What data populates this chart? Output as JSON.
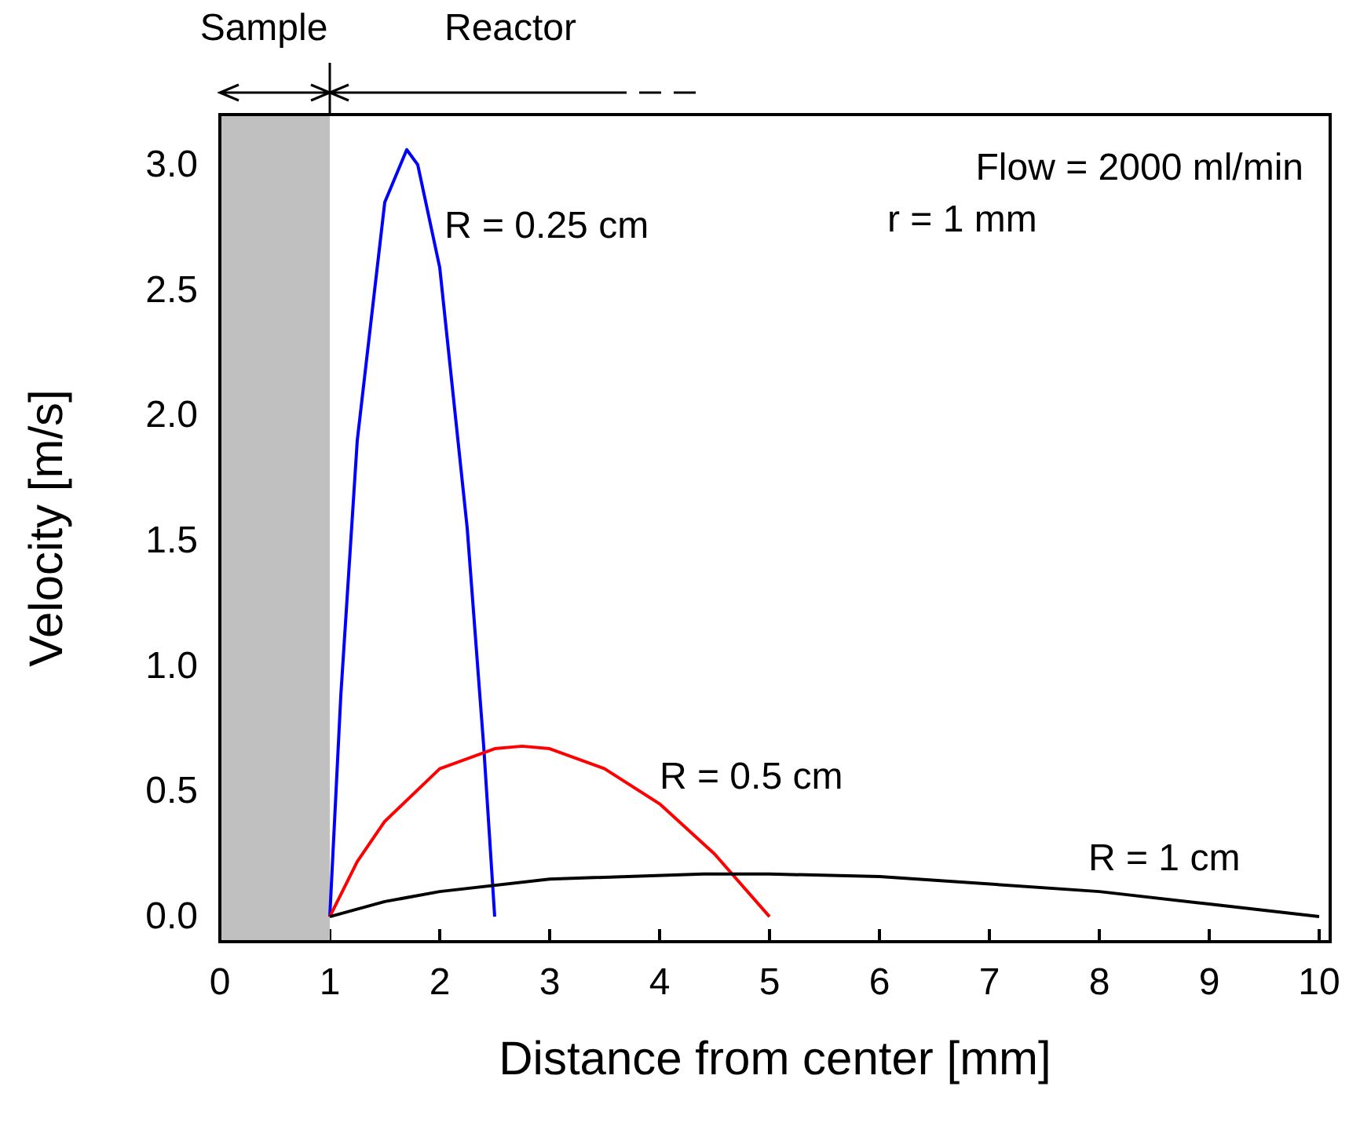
{
  "chart_data": {
    "type": "line",
    "xlabel": "Distance from center [mm]",
    "ylabel": "Velocity [m/s]",
    "xlim": [
      0,
      10.1
    ],
    "ylim": [
      -0.1,
      3.2
    ],
    "xticks": [
      0,
      1,
      2,
      3,
      4,
      5,
      6,
      7,
      8,
      9,
      10
    ],
    "yticks": [
      {
        "value": 0,
        "label": "0.0"
      },
      {
        "value": 0.5,
        "label": "0.5"
      },
      {
        "value": 1,
        "label": "1.0"
      },
      {
        "value": 1.5,
        "label": "1.5"
      },
      {
        "value": 2,
        "label": "2.0"
      },
      {
        "value": 2.5,
        "label": "2.5"
      },
      {
        "value": 3,
        "label": "3.0"
      }
    ],
    "series": [
      {
        "color": "#0000ff",
        "x": [
          1,
          1.1,
          1.25,
          1.5,
          1.7,
          1.8,
          2,
          2.25,
          2.4,
          2.5
        ],
        "values": [
          0,
          0.88,
          1.9,
          2.85,
          3.06,
          3.0,
          2.59,
          1.55,
          0.68,
          0
        ]
      },
      {
        "color": "#ff0000",
        "x": [
          1,
          1.25,
          1.5,
          2,
          2.5,
          2.75,
          3,
          3.5,
          4,
          4.5,
          5
        ],
        "values": [
          0,
          0.22,
          0.38,
          0.59,
          0.67,
          0.68,
          0.67,
          0.59,
          0.45,
          0.25,
          0
        ]
      },
      {
        "color": "#000000",
        "x": [
          1,
          1.5,
          2,
          3,
          4.4,
          5,
          6,
          8,
          9,
          10
        ],
        "values": [
          0,
          0.06,
          0.1,
          0.15,
          0.17,
          0.17,
          0.16,
          0.1,
          0.05,
          0
        ]
      }
    ],
    "bands": [
      {
        "axis": "x",
        "from": 0,
        "to": 1,
        "color": "#c0c0c0"
      }
    ],
    "annotations": [
      "R = 0.25 cm",
      "R = 0.5 cm",
      "R = 1 cm",
      "Flow = 2000 ml/min",
      "r = 1 mm",
      "Sample",
      "Reactor"
    ],
    "grid": false,
    "marker": "none",
    "line_style": "solid"
  }
}
